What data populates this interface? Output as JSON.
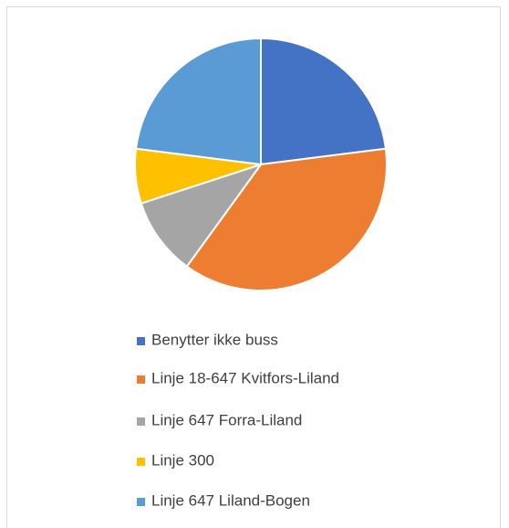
{
  "chart_data": {
    "type": "pie",
    "categories": [
      "Benytter ikke buss",
      "Linje 18-647 Kvitfors-Liland",
      "Linje 647 Forra-Liland",
      "Linje 300",
      "Linje 647 Liland-Bogen"
    ],
    "values": [
      23,
      37,
      10,
      7,
      23
    ],
    "colors": [
      "#4472c4",
      "#ed7d31",
      "#a5a5a5",
      "#ffc000",
      "#5b9bd5"
    ],
    "legend": "bottom"
  }
}
